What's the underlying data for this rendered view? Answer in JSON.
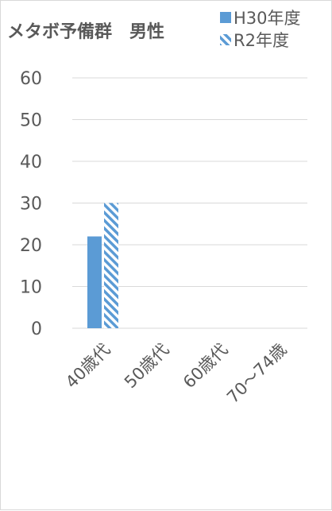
{
  "chart_data": {
    "type": "bar",
    "title": "メタボ予備群　男性",
    "categories": [
      "40歳代",
      "50歳代",
      "60歳代",
      "70～74歳"
    ],
    "series": [
      {
        "name": "H30年度",
        "values": [
          22,
          0,
          0,
          0
        ],
        "color": "#5b9bd5",
        "fill": "solid"
      },
      {
        "name": "R2年度",
        "values": [
          30,
          0,
          0,
          0
        ],
        "color": "#5b9bd5",
        "fill": "diagonal-hatch"
      }
    ],
    "yticks": [
      0,
      10,
      20,
      30,
      40,
      50,
      60
    ],
    "ylim": [
      0,
      60
    ],
    "grid": true,
    "legend_position": "top-right",
    "xlabel": "",
    "ylabel": ""
  }
}
